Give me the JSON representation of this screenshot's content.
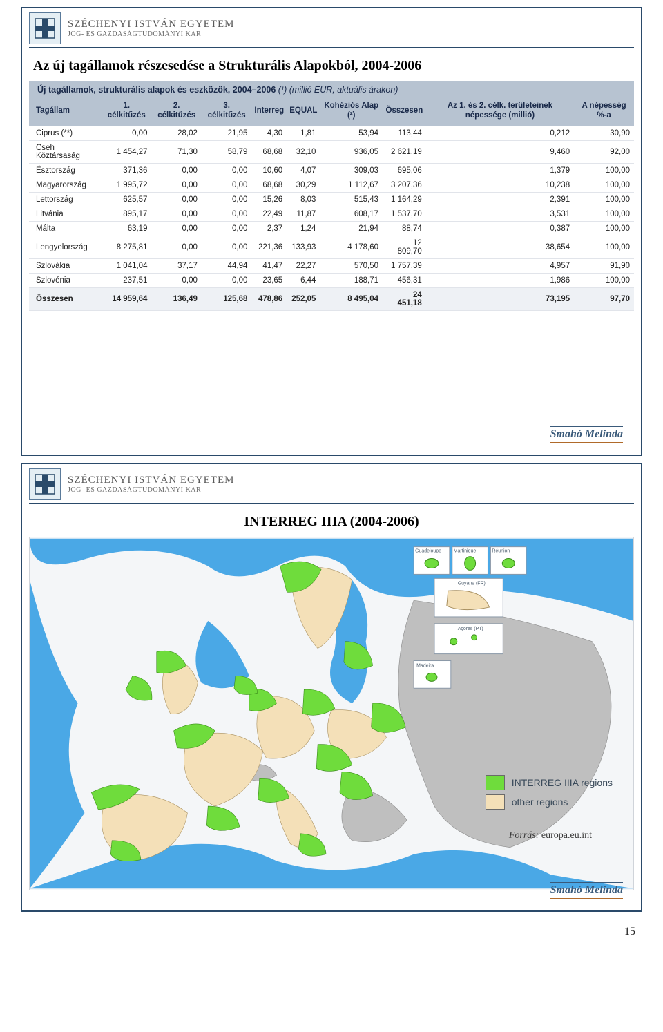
{
  "page_number": "15",
  "university": {
    "name": "SZÉCHENYI ISTVÁN EGYETEM",
    "faculty": "JOG- ÉS GAZDASÁGTUDOMÁNYI KAR"
  },
  "author": "Smahó Melinda",
  "slide1": {
    "title": "Az új tagállamok részesedése a Strukturális Alapokból, 2004-2006",
    "table_caption_main": "Új tagállamok, strukturális alapok és eszközök, 2004–2006",
    "table_caption_unit": "(¹) (millió EUR, aktuális árakon)",
    "columns": [
      "Tagállam",
      "1. célkitűzés",
      "2. célkitűzés",
      "3. célkitűzés",
      "Interreg",
      "EQUAL",
      "Kohéziós Alap (²)",
      "Összesen",
      "Az 1. és 2. célk. területeinek népessége (millió)",
      "A népesség %-a"
    ],
    "rows": [
      [
        "Ciprus (**)",
        "0,00",
        "28,02",
        "21,95",
        "4,30",
        "1,81",
        "53,94",
        "113,44",
        "0,212",
        "30,90"
      ],
      [
        "Cseh Köztársaság",
        "1 454,27",
        "71,30",
        "58,79",
        "68,68",
        "32,10",
        "936,05",
        "2 621,19",
        "9,460",
        "92,00"
      ],
      [
        "Észtország",
        "371,36",
        "0,00",
        "0,00",
        "10,60",
        "4,07",
        "309,03",
        "695,06",
        "1,379",
        "100,00"
      ],
      [
        "Magyarország",
        "1 995,72",
        "0,00",
        "0,00",
        "68,68",
        "30,29",
        "1 112,67",
        "3 207,36",
        "10,238",
        "100,00"
      ],
      [
        "Lettország",
        "625,57",
        "0,00",
        "0,00",
        "15,26",
        "8,03",
        "515,43",
        "1 164,29",
        "2,391",
        "100,00"
      ],
      [
        "Litvánia",
        "895,17",
        "0,00",
        "0,00",
        "22,49",
        "11,87",
        "608,17",
        "1 537,70",
        "3,531",
        "100,00"
      ],
      [
        "Málta",
        "63,19",
        "0,00",
        "0,00",
        "2,37",
        "1,24",
        "21,94",
        "88,74",
        "0,387",
        "100,00"
      ],
      [
        "Lengyelország",
        "8 275,81",
        "0,00",
        "0,00",
        "221,36",
        "133,93",
        "4 178,60",
        "12 809,70",
        "38,654",
        "100,00"
      ],
      [
        "Szlovákia",
        "1 041,04",
        "37,17",
        "44,94",
        "41,47",
        "22,27",
        "570,50",
        "1 757,39",
        "4,957",
        "91,90"
      ],
      [
        "Szlovénia",
        "237,51",
        "0,00",
        "0,00",
        "23,65",
        "6,44",
        "188,71",
        "456,31",
        "1,986",
        "100,00"
      ]
    ],
    "total_row": [
      "Összesen",
      "14 959,64",
      "136,49",
      "125,68",
      "478,86",
      "252,05",
      "8 495,04",
      "24 451,18",
      "73,195",
      "97,70"
    ]
  },
  "slide2": {
    "title": "INTERREG IIIA (2004-2006)",
    "source_label": "Forrás:",
    "source_value": "europa.eu.int",
    "legend": [
      {
        "label": "INTERREG IIIA regions",
        "color": "#6fdc3c"
      },
      {
        "label": "other regions",
        "color": "#f4e0b8"
      }
    ],
    "map": {
      "water_color": "#4aa8e6",
      "background": "#f4f6f8",
      "non_eu_color": "#bfbfbf",
      "inset_labels": [
        "Guadeloupe",
        "Martinique",
        "Réunion",
        "Guyane (FR)",
        "Açores (PT)",
        "Madeira"
      ]
    }
  },
  "colors": {
    "frame": "#2a4a6a",
    "header_bg": "#b7c3d1",
    "row_border": "#e1e4ea",
    "author_underline": "#b06a2a",
    "logo_border": "#5a7a9a"
  }
}
